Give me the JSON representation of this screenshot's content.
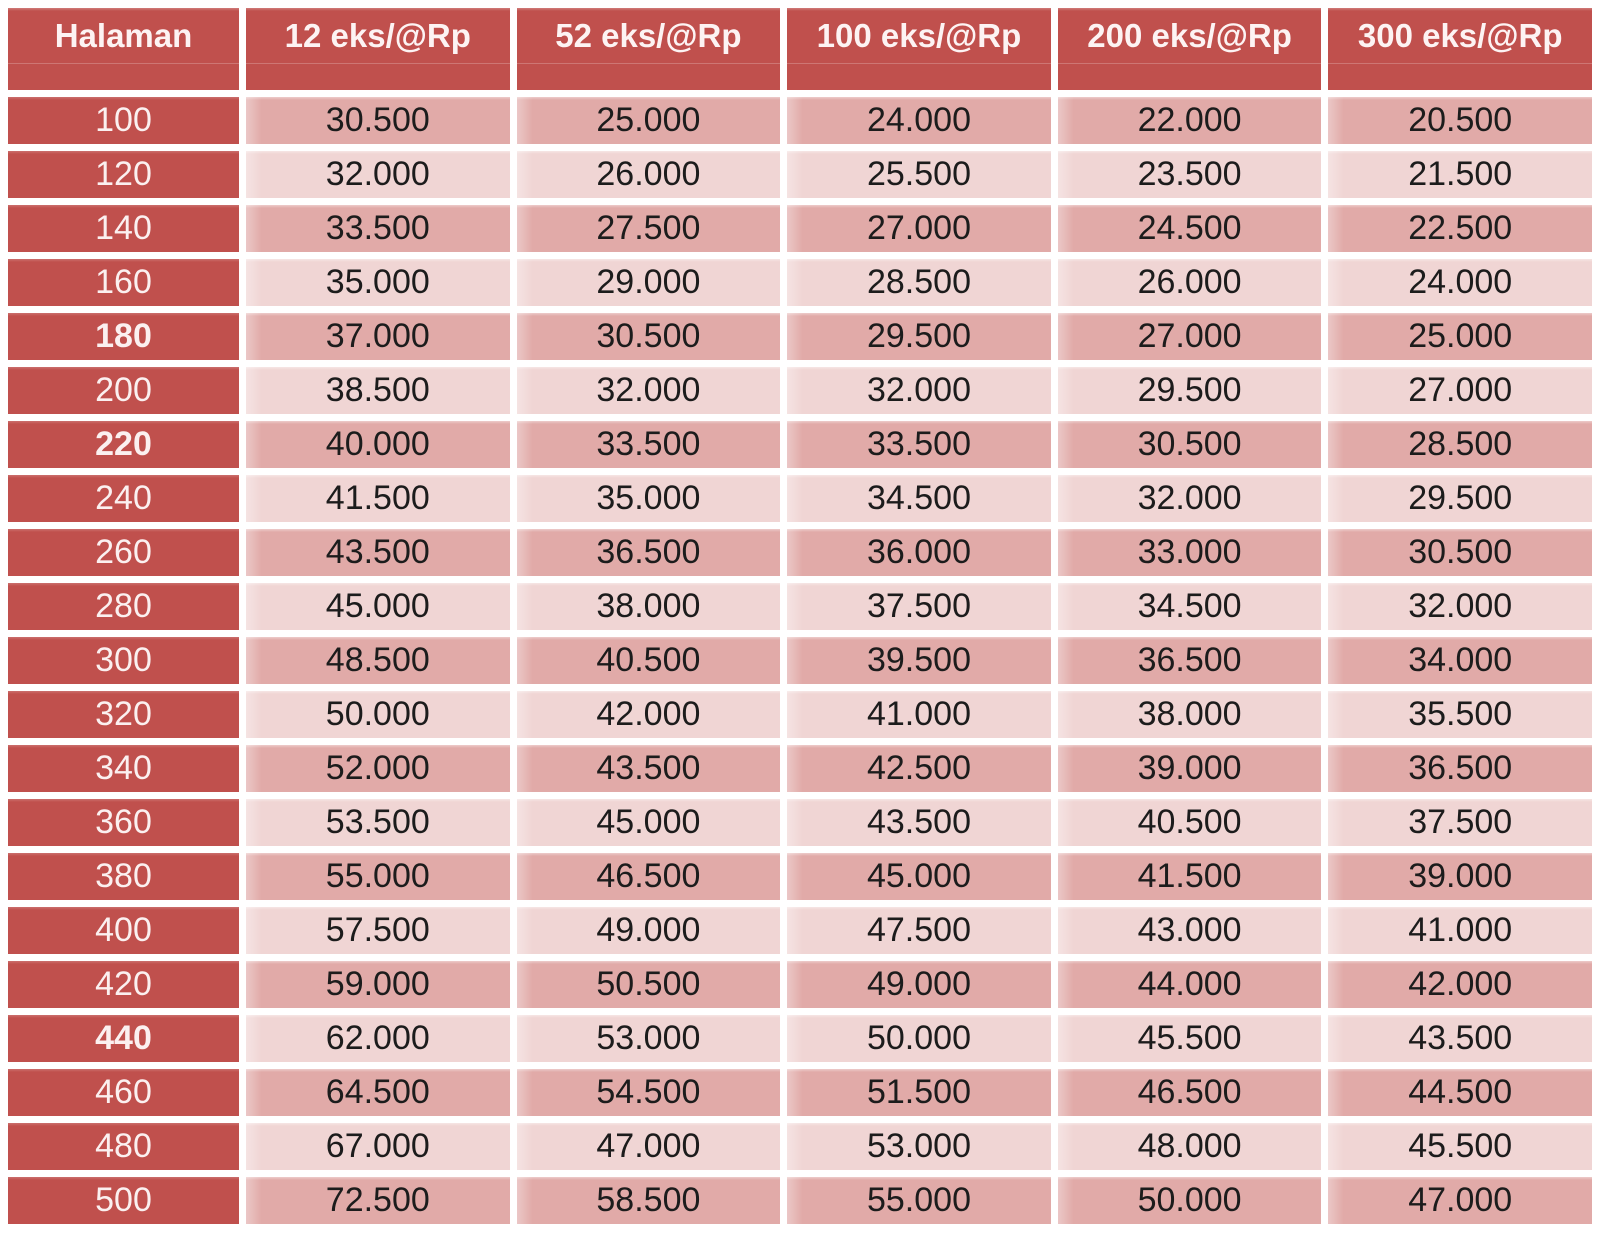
{
  "colors": {
    "header_bg": "#c0504d",
    "row_band_dark": "#e1aaa8",
    "row_band_light": "#f0d5d4",
    "header_text": "#ffffff",
    "data_text": "#1c1c1c"
  },
  "chart_data": {
    "type": "table",
    "columns": [
      "Halaman",
      "12 eks/@Rp",
      "52 eks/@Rp",
      "100 eks/@Rp",
      "200 eks/@Rp",
      "300 eks/@Rp"
    ],
    "rows": [
      {
        "label": "100",
        "bold": false,
        "values": [
          "30.500",
          "25.000",
          "24.000",
          "22.000",
          "20.500"
        ]
      },
      {
        "label": "120",
        "bold": false,
        "values": [
          "32.000",
          "26.000",
          "25.500",
          "23.500",
          "21.500"
        ]
      },
      {
        "label": "140",
        "bold": false,
        "values": [
          "33.500",
          "27.500",
          "27.000",
          "24.500",
          "22.500"
        ]
      },
      {
        "label": "160",
        "bold": false,
        "values": [
          "35.000",
          "29.000",
          "28.500",
          "26.000",
          "24.000"
        ]
      },
      {
        "label": "180",
        "bold": true,
        "values": [
          "37.000",
          "30.500",
          "29.500",
          "27.000",
          "25.000"
        ]
      },
      {
        "label": "200",
        "bold": false,
        "values": [
          "38.500",
          "32.000",
          "32.000",
          "29.500",
          "27.000"
        ]
      },
      {
        "label": "220",
        "bold": true,
        "values": [
          "40.000",
          "33.500",
          "33.500",
          "30.500",
          "28.500"
        ]
      },
      {
        "label": "240",
        "bold": false,
        "values": [
          "41.500",
          "35.000",
          "34.500",
          "32.000",
          "29.500"
        ]
      },
      {
        "label": "260",
        "bold": false,
        "values": [
          "43.500",
          "36.500",
          "36.000",
          "33.000",
          "30.500"
        ]
      },
      {
        "label": "280",
        "bold": false,
        "values": [
          "45.000",
          "38.000",
          "37.500",
          "34.500",
          "32.000"
        ]
      },
      {
        "label": "300",
        "bold": false,
        "values": [
          "48.500",
          "40.500",
          "39.500",
          "36.500",
          "34.000"
        ]
      },
      {
        "label": "320",
        "bold": false,
        "values": [
          "50.000",
          "42.000",
          "41.000",
          "38.000",
          "35.500"
        ]
      },
      {
        "label": "340",
        "bold": false,
        "values": [
          "52.000",
          "43.500",
          "42.500",
          "39.000",
          "36.500"
        ]
      },
      {
        "label": "360",
        "bold": false,
        "values": [
          "53.500",
          "45.000",
          "43.500",
          "40.500",
          "37.500"
        ]
      },
      {
        "label": "380",
        "bold": false,
        "values": [
          "55.000",
          "46.500",
          "45.000",
          "41.500",
          "39.000"
        ]
      },
      {
        "label": "400",
        "bold": false,
        "values": [
          "57.500",
          "49.000",
          "47.500",
          "43.000",
          "41.000"
        ]
      },
      {
        "label": "420",
        "bold": false,
        "values": [
          "59.000",
          "50.500",
          "49.000",
          "44.000",
          "42.000"
        ]
      },
      {
        "label": "440",
        "bold": true,
        "values": [
          "62.000",
          "53.000",
          "50.000",
          "45.500",
          "43.500"
        ]
      },
      {
        "label": "460",
        "bold": false,
        "values": [
          "64.500",
          "54.500",
          "51.500",
          "46.500",
          "44.500"
        ]
      },
      {
        "label": "480",
        "bold": false,
        "values": [
          "67.000",
          "47.000",
          "53.000",
          "48.000",
          "45.500"
        ]
      },
      {
        "label": "500",
        "bold": false,
        "values": [
          "72.500",
          "58.500",
          "55.000",
          "50.000",
          "47.000"
        ]
      }
    ]
  }
}
